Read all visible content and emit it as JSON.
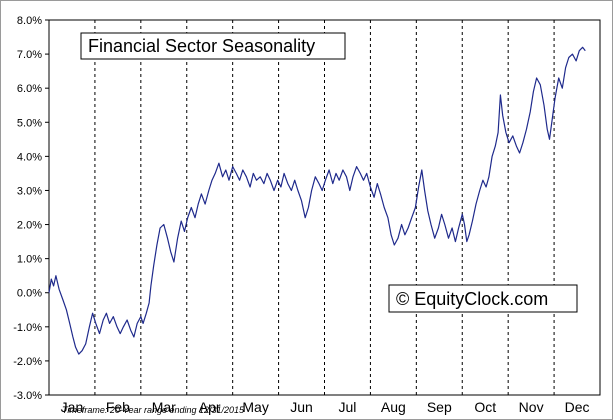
{
  "chart_data": {
    "type": "line",
    "title": "Financial Sector Seasonality",
    "watermark": "© EquityClock.com",
    "footnote": "Timeframe: 20-Year range ending 12/31/2015",
    "xlabel": "",
    "ylabel": "",
    "ylim": [
      -3.0,
      8.0
    ],
    "y_ticks": [
      "8.0%",
      "7.0%",
      "6.0%",
      "5.0%",
      "4.0%",
      "3.0%",
      "2.0%",
      "1.0%",
      "0.0%",
      "-1.0%",
      "-2.0%",
      "-3.0%"
    ],
    "y_tick_values": [
      8,
      7,
      6,
      5,
      4,
      3,
      2,
      1,
      0,
      -1,
      -2,
      -3
    ],
    "categories": [
      "Jan",
      "Feb",
      "Mar",
      "Apr",
      "May",
      "Jun",
      "Jul",
      "Aug",
      "Sep",
      "Oct",
      "Nov",
      "Dec"
    ],
    "grid": "vertical-dashed-month-boundaries",
    "x_unit": "month",
    "xlim": [
      0,
      12
    ],
    "series": [
      {
        "color": "#1f2a8c",
        "points": [
          [
            0.0,
            0.0
          ],
          [
            0.05,
            0.4
          ],
          [
            0.1,
            0.2
          ],
          [
            0.15,
            0.5
          ],
          [
            0.22,
            0.1
          ],
          [
            0.3,
            -0.2
          ],
          [
            0.38,
            -0.5
          ],
          [
            0.45,
            -0.9
          ],
          [
            0.52,
            -1.3
          ],
          [
            0.58,
            -1.6
          ],
          [
            0.65,
            -1.8
          ],
          [
            0.72,
            -1.7
          ],
          [
            0.8,
            -1.5
          ],
          [
            0.88,
            -1.0
          ],
          [
            0.95,
            -0.6
          ],
          [
            1.02,
            -0.9
          ],
          [
            1.1,
            -1.2
          ],
          [
            1.18,
            -0.8
          ],
          [
            1.25,
            -0.6
          ],
          [
            1.32,
            -0.9
          ],
          [
            1.4,
            -0.7
          ],
          [
            1.48,
            -1.0
          ],
          [
            1.55,
            -1.2
          ],
          [
            1.62,
            -1.0
          ],
          [
            1.7,
            -0.8
          ],
          [
            1.78,
            -1.1
          ],
          [
            1.85,
            -1.3
          ],
          [
            1.92,
            -0.9
          ],
          [
            2.0,
            -0.7
          ],
          [
            2.05,
            -0.9
          ],
          [
            2.12,
            -0.6
          ],
          [
            2.18,
            -0.3
          ],
          [
            2.22,
            0.2
          ],
          [
            2.28,
            0.8
          ],
          [
            2.35,
            1.4
          ],
          [
            2.42,
            1.9
          ],
          [
            2.5,
            2.0
          ],
          [
            2.58,
            1.6
          ],
          [
            2.65,
            1.2
          ],
          [
            2.72,
            0.9
          ],
          [
            2.8,
            1.6
          ],
          [
            2.88,
            2.1
          ],
          [
            2.95,
            1.8
          ],
          [
            3.02,
            2.2
          ],
          [
            3.1,
            2.5
          ],
          [
            3.18,
            2.2
          ],
          [
            3.25,
            2.6
          ],
          [
            3.32,
            2.9
          ],
          [
            3.4,
            2.6
          ],
          [
            3.48,
            3.0
          ],
          [
            3.55,
            3.3
          ],
          [
            3.62,
            3.5
          ],
          [
            3.7,
            3.8
          ],
          [
            3.78,
            3.4
          ],
          [
            3.85,
            3.6
          ],
          [
            3.92,
            3.3
          ],
          [
            4.0,
            3.7
          ],
          [
            4.08,
            3.5
          ],
          [
            4.15,
            3.3
          ],
          [
            4.22,
            3.6
          ],
          [
            4.3,
            3.4
          ],
          [
            4.38,
            3.1
          ],
          [
            4.45,
            3.5
          ],
          [
            4.52,
            3.3
          ],
          [
            4.6,
            3.4
          ],
          [
            4.68,
            3.2
          ],
          [
            4.75,
            3.5
          ],
          [
            4.82,
            3.3
          ],
          [
            4.9,
            3.0
          ],
          [
            4.98,
            3.3
          ],
          [
            5.05,
            3.1
          ],
          [
            5.12,
            3.5
          ],
          [
            5.2,
            3.2
          ],
          [
            5.28,
            3.0
          ],
          [
            5.35,
            3.3
          ],
          [
            5.42,
            3.0
          ],
          [
            5.5,
            2.7
          ],
          [
            5.58,
            2.2
          ],
          [
            5.65,
            2.5
          ],
          [
            5.72,
            3.0
          ],
          [
            5.8,
            3.4
          ],
          [
            5.88,
            3.2
          ],
          [
            5.95,
            3.0
          ],
          [
            6.02,
            3.3
          ],
          [
            6.1,
            3.6
          ],
          [
            6.18,
            3.2
          ],
          [
            6.25,
            3.5
          ],
          [
            6.32,
            3.3
          ],
          [
            6.4,
            3.6
          ],
          [
            6.48,
            3.4
          ],
          [
            6.55,
            3.0
          ],
          [
            6.62,
            3.4
          ],
          [
            6.7,
            3.7
          ],
          [
            6.78,
            3.5
          ],
          [
            6.85,
            3.3
          ],
          [
            6.92,
            3.5
          ],
          [
            7.0,
            3.1
          ],
          [
            7.08,
            2.8
          ],
          [
            7.15,
            3.2
          ],
          [
            7.22,
            2.9
          ],
          [
            7.3,
            2.5
          ],
          [
            7.38,
            2.2
          ],
          [
            7.45,
            1.7
          ],
          [
            7.52,
            1.4
          ],
          [
            7.6,
            1.6
          ],
          [
            7.68,
            2.0
          ],
          [
            7.75,
            1.7
          ],
          [
            7.82,
            1.9
          ],
          [
            7.9,
            2.2
          ],
          [
            7.98,
            2.5
          ],
          [
            8.05,
            3.1
          ],
          [
            8.12,
            3.6
          ],
          [
            8.18,
            3.0
          ],
          [
            8.25,
            2.4
          ],
          [
            8.32,
            2.0
          ],
          [
            8.4,
            1.6
          ],
          [
            8.48,
            1.9
          ],
          [
            8.55,
            2.3
          ],
          [
            8.62,
            2.0
          ],
          [
            8.7,
            1.6
          ],
          [
            8.78,
            1.9
          ],
          [
            8.85,
            1.5
          ],
          [
            8.92,
            1.9
          ],
          [
            9.0,
            2.3
          ],
          [
            9.05,
            2.0
          ],
          [
            9.1,
            1.5
          ],
          [
            9.15,
            1.7
          ],
          [
            9.22,
            2.1
          ],
          [
            9.3,
            2.6
          ],
          [
            9.38,
            3.0
          ],
          [
            9.45,
            3.3
          ],
          [
            9.52,
            3.1
          ],
          [
            9.58,
            3.4
          ],
          [
            9.65,
            4.0
          ],
          [
            9.72,
            4.3
          ],
          [
            9.78,
            4.7
          ],
          [
            9.83,
            5.8
          ],
          [
            9.88,
            5.2
          ],
          [
            9.95,
            4.7
          ],
          [
            10.02,
            4.4
          ],
          [
            10.1,
            4.6
          ],
          [
            10.18,
            4.3
          ],
          [
            10.25,
            4.1
          ],
          [
            10.32,
            4.4
          ],
          [
            10.4,
            4.8
          ],
          [
            10.48,
            5.3
          ],
          [
            10.55,
            5.9
          ],
          [
            10.62,
            6.3
          ],
          [
            10.7,
            6.1
          ],
          [
            10.78,
            5.5
          ],
          [
            10.85,
            4.8
          ],
          [
            10.9,
            4.5
          ],
          [
            10.95,
            5.0
          ],
          [
            11.02,
            5.7
          ],
          [
            11.1,
            6.3
          ],
          [
            11.18,
            6.0
          ],
          [
            11.25,
            6.6
          ],
          [
            11.32,
            6.9
          ],
          [
            11.4,
            7.0
          ],
          [
            11.48,
            6.8
          ],
          [
            11.55,
            7.1
          ],
          [
            11.62,
            7.2
          ],
          [
            11.68,
            7.1
          ]
        ]
      }
    ]
  }
}
